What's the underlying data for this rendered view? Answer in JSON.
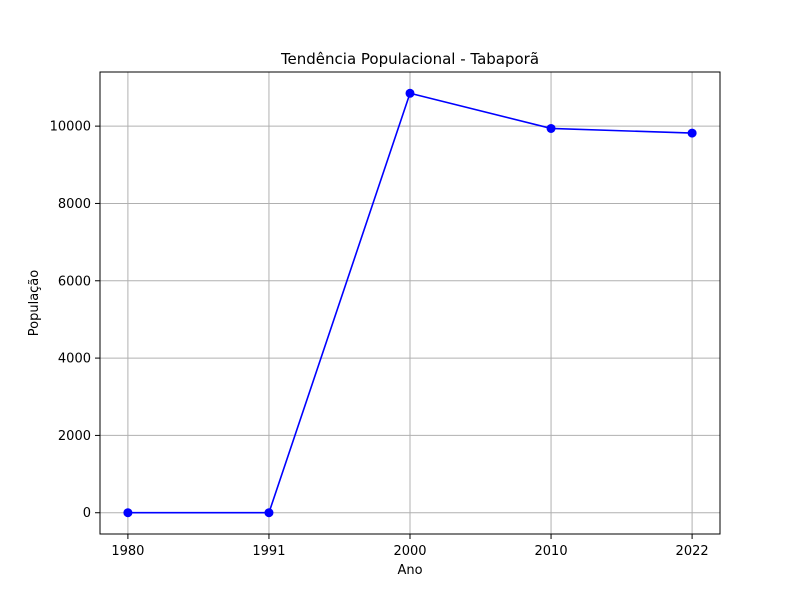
{
  "chart_data": {
    "type": "line",
    "title": "Tendência Populacional - Tabaporã",
    "xlabel": "Ano",
    "ylabel": "População",
    "categories": [
      "1980",
      "1991",
      "2000",
      "2010",
      "2022"
    ],
    "series": [
      {
        "values": [
          0,
          0,
          10850,
          9940,
          9820
        ]
      }
    ],
    "ylim": [
      -550,
      11400
    ],
    "yticks": [
      0,
      2000,
      4000,
      6000,
      8000,
      10000
    ],
    "yticklabels": [
      "0",
      "2000",
      "4000",
      "6000",
      "8000",
      "10000"
    ],
    "grid": true,
    "legend": "none",
    "colors": {
      "line": "#0000ff",
      "marker": "#0000ff",
      "grid": "#b0b0b0",
      "axes": "#000000"
    }
  }
}
